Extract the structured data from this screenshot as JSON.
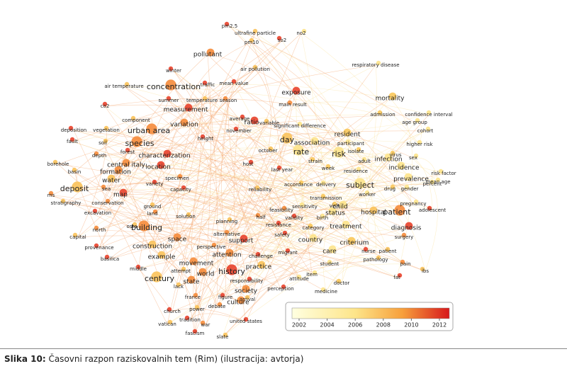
{
  "nodes": [
    "pm2.5",
    "ultrafine particle",
    "no2",
    "so2",
    "pm10",
    "pollutant",
    "winter",
    "air pollution",
    "respiratory disease",
    "traffic",
    "mean value",
    "air temperature",
    "concentration",
    "summer",
    "temperature",
    "season",
    "exposure",
    "mortality",
    "main result",
    "co2",
    "measurement",
    "admission",
    "confidence interval",
    "average",
    "component",
    "variation",
    "ratio",
    "variable",
    "significant difference",
    "age group",
    "deposition",
    "vegetation",
    "urban area",
    "november",
    "resident",
    "cohort",
    "height",
    "day",
    "association",
    "participant",
    "fault",
    "soil",
    "species",
    "higher risk",
    "october",
    "rate",
    "risk",
    "isolate",
    "depth",
    "forest",
    "characterization",
    "virus",
    "infection",
    "sex",
    "borehole",
    "central italy",
    "location",
    "strain",
    "adult",
    "host",
    "incidence",
    "basin",
    "formation",
    "last year",
    "week",
    "residence",
    "risk factor",
    "water",
    "specimen",
    "prevalence",
    "mean age",
    "accordance",
    "delivery",
    "subject",
    "drug",
    "gender",
    "percent",
    "deposit",
    "sea",
    "variety",
    "capacity",
    "reliability",
    "ms",
    "map",
    "transmission",
    "worker",
    "pregnancy",
    "stratigraphy",
    "conservation",
    "child",
    "sensitivity",
    "visit",
    "feasibility",
    "excavation",
    "ground",
    "land",
    "status",
    "hospital",
    "patient",
    "adolescent",
    "validity",
    "solution",
    "half",
    "birth",
    "planning",
    "north",
    "resistance",
    "osta",
    "building",
    "treatment",
    "diagnosis",
    "category",
    "alternative",
    "safety",
    "capital",
    "space",
    "country",
    "criterium",
    "surgery",
    "support",
    "provenance",
    "construction",
    "perspective",
    "nurse",
    "patient",
    "care",
    "basilica",
    "example",
    "attention",
    "challenge",
    "migrant",
    "pathology",
    "movement",
    "student",
    "practice",
    "pain",
    "middle",
    "attempt",
    "world",
    "history",
    "item",
    "century",
    "attitude",
    "fat",
    "ibs",
    "state",
    "responsibility",
    "doctor",
    "society",
    "perception",
    "medicine",
    "lack",
    "france",
    "figure",
    "arrival",
    "culture",
    "church",
    "power",
    "debate",
    "tradition",
    "united states",
    "vatican",
    "war",
    "fascism",
    "slate"
  ],
  "legend": {
    "ticks": [
      2002,
      2004,
      2006,
      2008,
      2010,
      2012
    ]
  },
  "caption": {
    "label": "Slika 10:",
    "text": "Časovni razpon raziskovalnih tem (Rim) (ilustracija: avtorja)"
  }
}
